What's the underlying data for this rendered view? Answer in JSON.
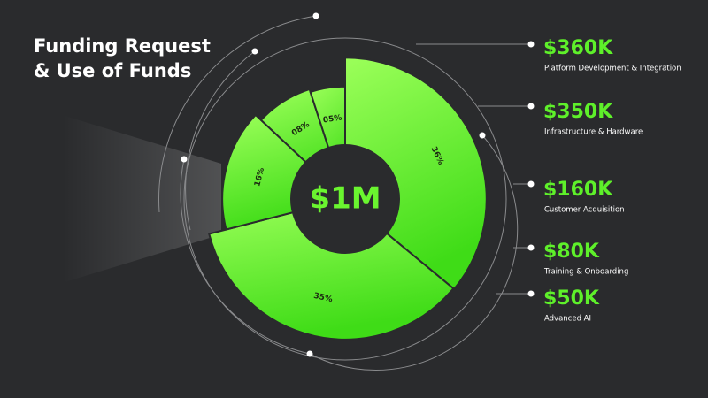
{
  "chart_data": {
    "type": "pie",
    "title": "Funding Request & Use of Funds",
    "total_label": "$1M",
    "categories": [
      "Platform Development & Integration",
      "Infrastructure & Hardware",
      "Customer Acquisition",
      "Training & Onboarding",
      "Advanced AI"
    ],
    "values": [
      36,
      35,
      16,
      8,
      5
    ],
    "value_labels": [
      "36%",
      "35%",
      "16%",
      "08%",
      "05%"
    ],
    "amount_labels": [
      "$360K",
      "$350K",
      "$160K",
      "$80K",
      "$50K"
    ],
    "color": "#5ef02a"
  }
}
